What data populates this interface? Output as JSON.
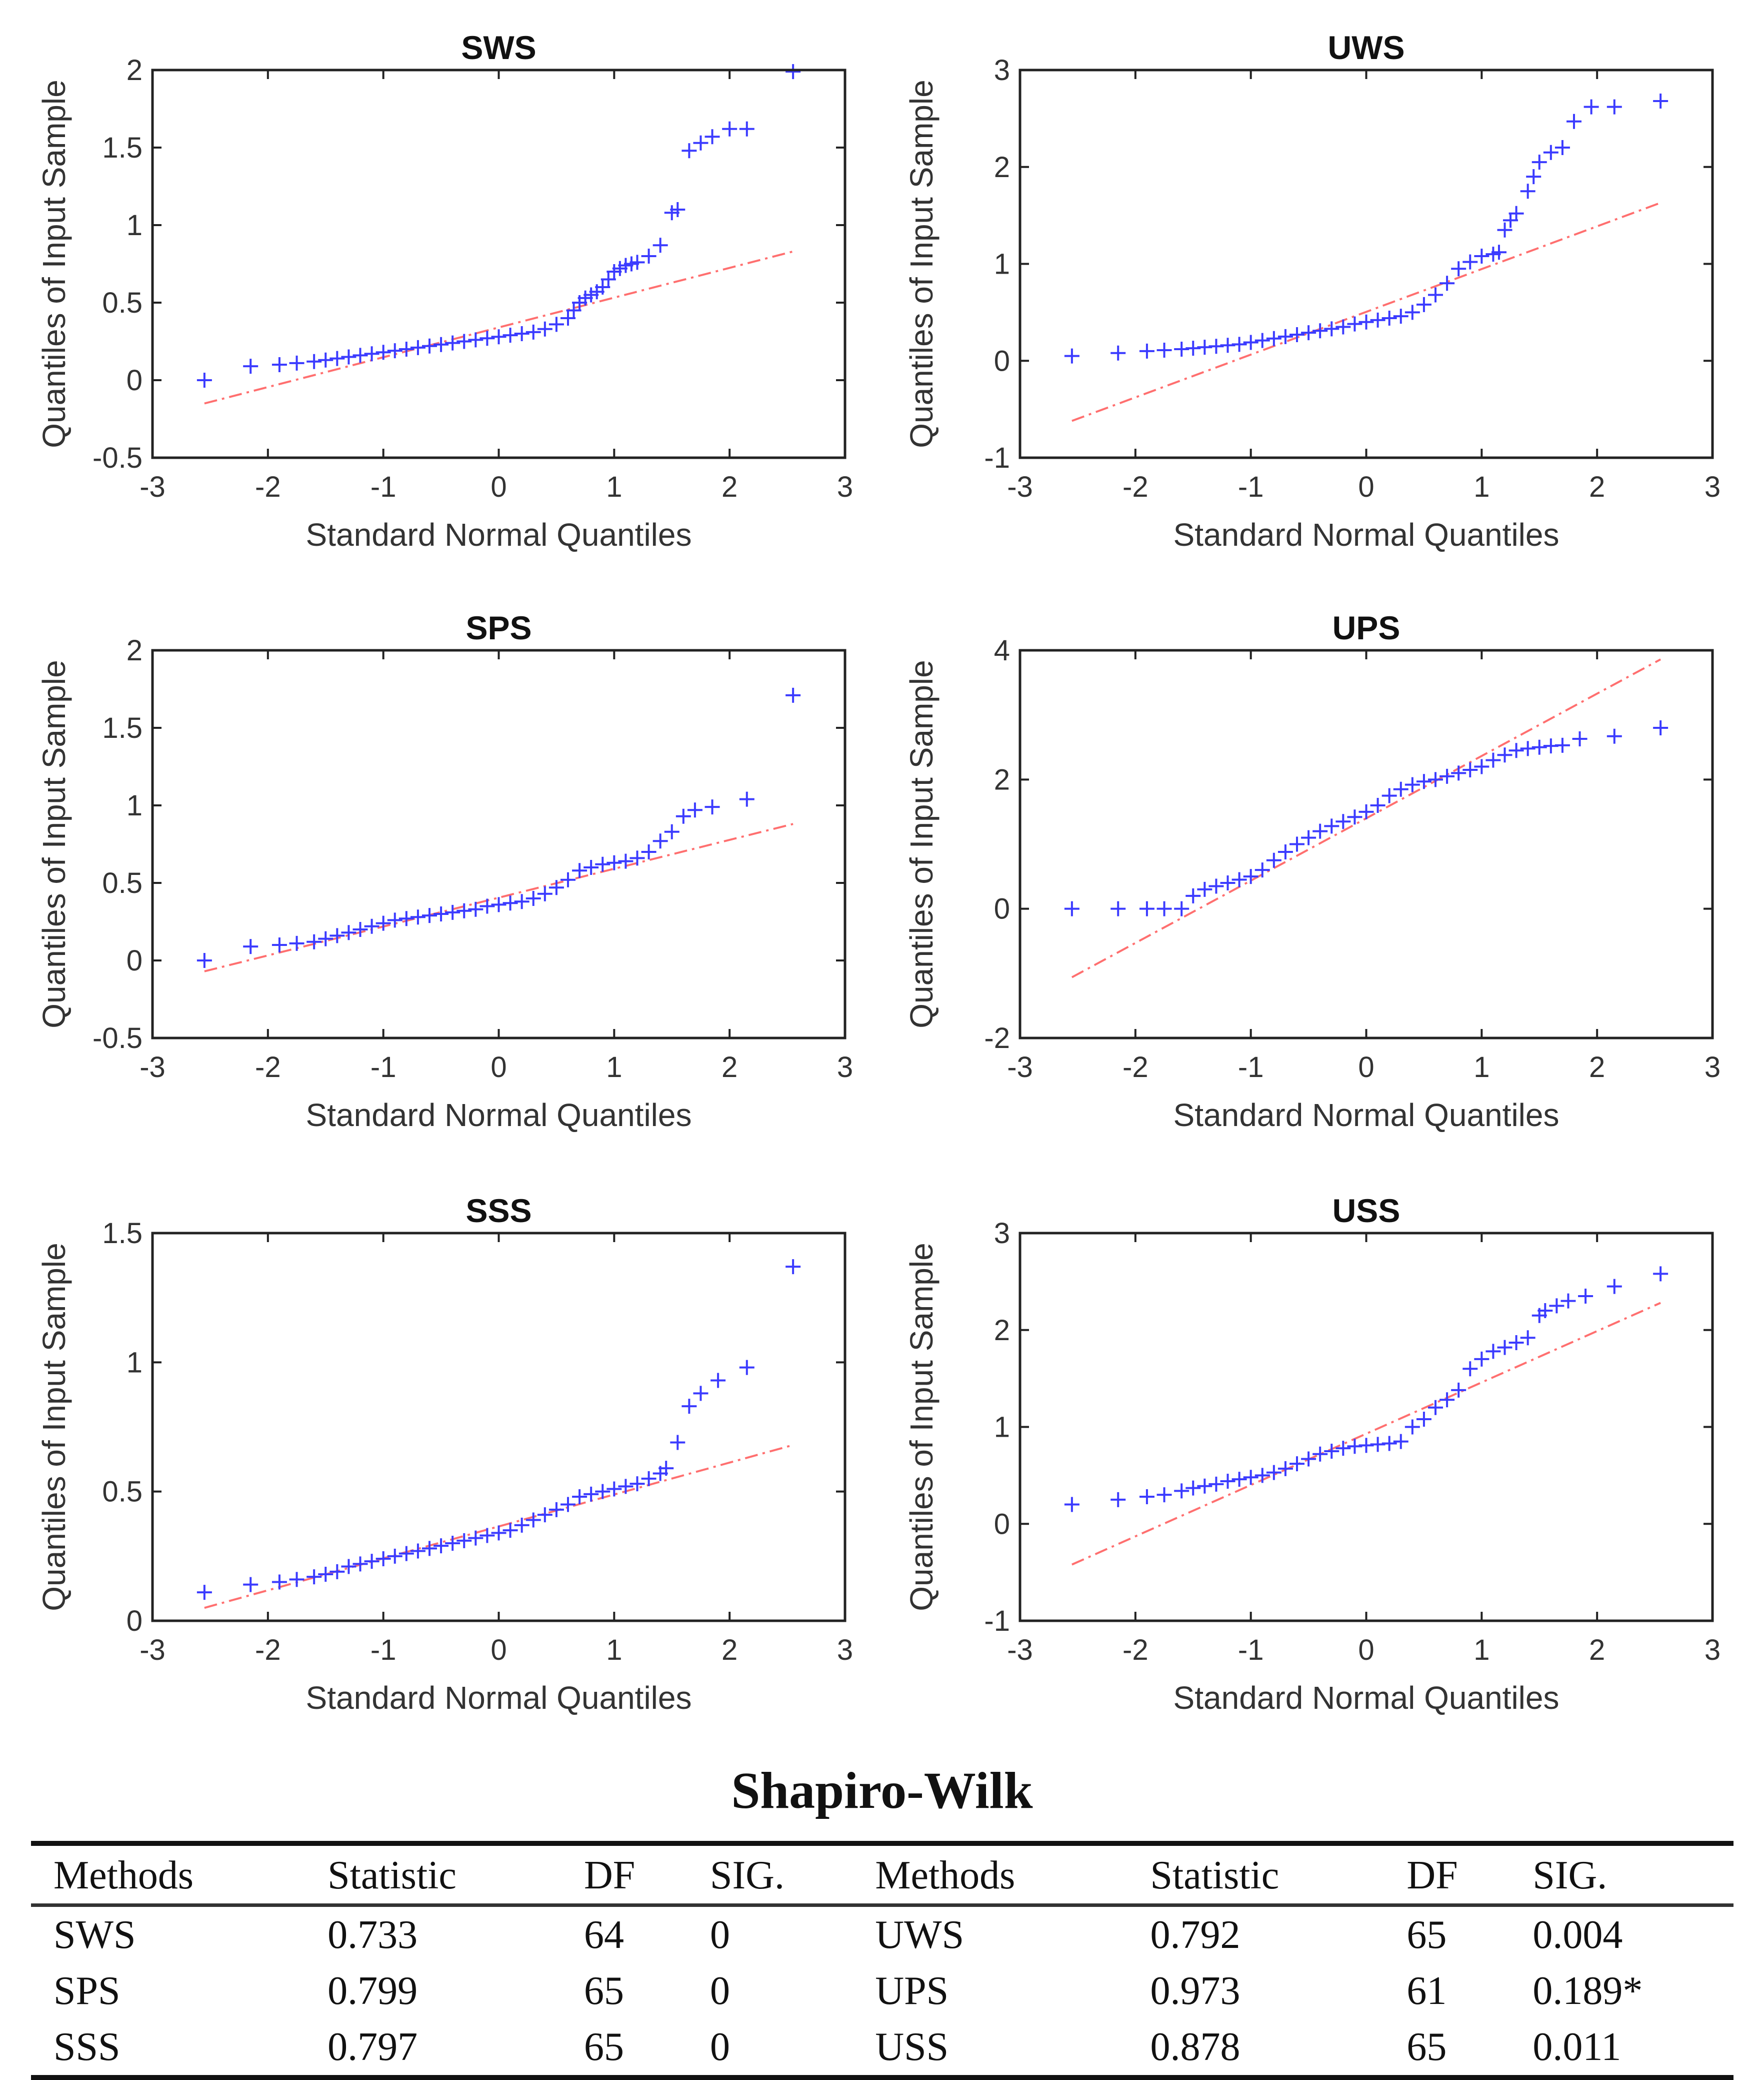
{
  "chart_data": [
    {
      "type": "scatter",
      "title": "SWS",
      "xlabel": "Standard Normal Quantiles",
      "ylabel": "Quantiles of Input Sample",
      "xlim": [
        -3,
        3
      ],
      "ylim": [
        -0.5,
        2
      ],
      "xticks": [
        -3,
        -2,
        -1,
        0,
        1,
        2,
        3
      ],
      "yticks": [
        -0.5,
        0,
        0.5,
        1,
        1.5,
        2
      ],
      "refline": {
        "from": [
          -2.55,
          -0.15
        ],
        "to": [
          2.55,
          0.83
        ]
      },
      "x": [
        -2.55,
        -2.15,
        -1.9,
        -1.75,
        -1.6,
        -1.5,
        -1.4,
        -1.3,
        -1.2,
        -1.1,
        -1.0,
        -0.9,
        -0.8,
        -0.7,
        -0.6,
        -0.5,
        -0.4,
        -0.3,
        -0.2,
        -0.1,
        0.0,
        0.1,
        0.2,
        0.3,
        0.4,
        0.5,
        0.6,
        0.65,
        0.7,
        0.75,
        0.8,
        0.85,
        0.9,
        0.95,
        1.0,
        1.05,
        1.1,
        1.15,
        1.2,
        1.3,
        1.4,
        1.5,
        1.55,
        1.65,
        1.75,
        1.85,
        2.0,
        2.15,
        2.55
      ],
      "y": [
        0.0,
        0.09,
        0.1,
        0.11,
        0.12,
        0.13,
        0.14,
        0.15,
        0.16,
        0.17,
        0.18,
        0.19,
        0.2,
        0.21,
        0.22,
        0.23,
        0.24,
        0.25,
        0.26,
        0.27,
        0.28,
        0.29,
        0.3,
        0.31,
        0.33,
        0.36,
        0.4,
        0.45,
        0.5,
        0.53,
        0.55,
        0.57,
        0.6,
        0.65,
        0.7,
        0.72,
        0.74,
        0.75,
        0.76,
        0.8,
        0.87,
        1.08,
        1.1,
        1.48,
        1.53,
        1.57,
        1.62,
        1.62,
        1.99
      ]
    },
    {
      "type": "scatter",
      "title": "UWS",
      "xlabel": "Standard Normal Quantiles",
      "ylabel": "Quantiles of Input Sample",
      "xlim": [
        -3,
        3
      ],
      "ylim": [
        -1,
        3
      ],
      "xticks": [
        -3,
        -2,
        -1,
        0,
        1,
        2,
        3
      ],
      "yticks": [
        -1,
        0,
        1,
        2,
        3
      ],
      "refline": {
        "from": [
          -2.55,
          -0.62
        ],
        "to": [
          2.55,
          1.63
        ]
      },
      "x": [
        -2.55,
        -2.15,
        -1.9,
        -1.75,
        -1.6,
        -1.5,
        -1.4,
        -1.3,
        -1.2,
        -1.1,
        -1.0,
        -0.9,
        -0.8,
        -0.7,
        -0.6,
        -0.5,
        -0.4,
        -0.3,
        -0.2,
        -0.1,
        0.0,
        0.1,
        0.2,
        0.3,
        0.4,
        0.5,
        0.6,
        0.7,
        0.8,
        0.9,
        1.0,
        1.1,
        1.15,
        1.2,
        1.25,
        1.3,
        1.4,
        1.45,
        1.5,
        1.6,
        1.7,
        1.8,
        1.95,
        2.15,
        2.55
      ],
      "y": [
        0.05,
        0.08,
        0.1,
        0.11,
        0.12,
        0.13,
        0.14,
        0.15,
        0.16,
        0.17,
        0.19,
        0.21,
        0.23,
        0.25,
        0.27,
        0.29,
        0.31,
        0.33,
        0.35,
        0.38,
        0.4,
        0.42,
        0.44,
        0.46,
        0.5,
        0.58,
        0.68,
        0.8,
        0.95,
        1.02,
        1.08,
        1.1,
        1.12,
        1.35,
        1.45,
        1.52,
        1.75,
        1.9,
        2.05,
        2.15,
        2.2,
        2.47,
        2.62,
        2.62,
        2.68
      ]
    },
    {
      "type": "scatter",
      "title": "SPS",
      "xlabel": "Standard Normal Quantiles",
      "ylabel": "Quantiles of Input Sample",
      "xlim": [
        -3,
        3
      ],
      "ylim": [
        -0.5,
        2
      ],
      "xticks": [
        -3,
        -2,
        -1,
        0,
        1,
        2,
        3
      ],
      "yticks": [
        -0.5,
        0,
        0.5,
        1,
        1.5,
        2
      ],
      "refline": {
        "from": [
          -2.55,
          -0.07
        ],
        "to": [
          2.55,
          0.88
        ]
      },
      "x": [
        -2.55,
        -2.15,
        -1.9,
        -1.75,
        -1.6,
        -1.5,
        -1.4,
        -1.3,
        -1.2,
        -1.1,
        -1.0,
        -0.9,
        -0.8,
        -0.7,
        -0.6,
        -0.5,
        -0.4,
        -0.3,
        -0.2,
        -0.1,
        0.0,
        0.1,
        0.2,
        0.3,
        0.4,
        0.5,
        0.6,
        0.7,
        0.8,
        0.9,
        1.0,
        1.1,
        1.2,
        1.3,
        1.4,
        1.5,
        1.6,
        1.7,
        1.85,
        2.15,
        2.55
      ],
      "y": [
        0.0,
        0.09,
        0.1,
        0.11,
        0.12,
        0.14,
        0.16,
        0.18,
        0.2,
        0.22,
        0.24,
        0.26,
        0.27,
        0.28,
        0.29,
        0.3,
        0.31,
        0.32,
        0.33,
        0.35,
        0.36,
        0.37,
        0.38,
        0.4,
        0.43,
        0.47,
        0.52,
        0.58,
        0.6,
        0.62,
        0.63,
        0.64,
        0.66,
        0.7,
        0.77,
        0.83,
        0.93,
        0.97,
        0.99,
        1.04,
        1.71
      ]
    },
    {
      "type": "scatter",
      "title": "UPS",
      "xlabel": "Standard Normal Quantiles",
      "ylabel": "Quantiles of Input Sample",
      "xlim": [
        -3,
        3
      ],
      "ylim": [
        -2,
        4
      ],
      "xticks": [
        -3,
        -2,
        -1,
        0,
        1,
        2,
        3
      ],
      "yticks": [
        -2,
        0,
        2,
        4
      ],
      "refline": {
        "from": [
          -2.55,
          -1.06
        ],
        "to": [
          2.55,
          3.86
        ]
      },
      "x": [
        -2.55,
        -2.15,
        -1.9,
        -1.75,
        -1.6,
        -1.5,
        -1.4,
        -1.3,
        -1.2,
        -1.1,
        -1.0,
        -0.9,
        -0.8,
        -0.7,
        -0.6,
        -0.5,
        -0.4,
        -0.3,
        -0.2,
        -0.1,
        0.0,
        0.1,
        0.2,
        0.3,
        0.4,
        0.5,
        0.6,
        0.7,
        0.8,
        0.9,
        1.0,
        1.1,
        1.2,
        1.3,
        1.4,
        1.5,
        1.6,
        1.7,
        1.85,
        2.15,
        2.55
      ],
      "y": [
        0.0,
        0.0,
        0.0,
        0.0,
        0.0,
        0.2,
        0.3,
        0.35,
        0.4,
        0.45,
        0.5,
        0.6,
        0.75,
        0.88,
        1.0,
        1.1,
        1.2,
        1.28,
        1.35,
        1.42,
        1.5,
        1.6,
        1.75,
        1.85,
        1.92,
        1.97,
        2.0,
        2.05,
        2.1,
        2.15,
        2.2,
        2.3,
        2.38,
        2.45,
        2.48,
        2.5,
        2.52,
        2.53,
        2.63,
        2.67,
        2.8
      ]
    },
    {
      "type": "scatter",
      "title": "SSS",
      "xlabel": "Standard Normal Quantiles",
      "ylabel": "Quantiles of Input Sample",
      "xlim": [
        -3,
        3
      ],
      "ylim": [
        0,
        1.5
      ],
      "xticks": [
        -3,
        -2,
        -1,
        0,
        1,
        2,
        3
      ],
      "yticks": [
        0,
        0.5,
        1,
        1.5
      ],
      "refline": {
        "from": [
          -2.55,
          0.05
        ],
        "to": [
          2.55,
          0.68
        ]
      },
      "x": [
        -2.55,
        -2.15,
        -1.9,
        -1.75,
        -1.6,
        -1.5,
        -1.4,
        -1.3,
        -1.2,
        -1.1,
        -1.0,
        -0.9,
        -0.8,
        -0.7,
        -0.6,
        -0.5,
        -0.4,
        -0.3,
        -0.2,
        -0.1,
        0.0,
        0.1,
        0.2,
        0.3,
        0.4,
        0.5,
        0.6,
        0.7,
        0.8,
        0.9,
        1.0,
        1.1,
        1.2,
        1.3,
        1.4,
        1.45,
        1.55,
        1.65,
        1.75,
        1.9,
        2.15,
        2.55
      ],
      "y": [
        0.11,
        0.14,
        0.15,
        0.16,
        0.17,
        0.18,
        0.19,
        0.21,
        0.22,
        0.23,
        0.24,
        0.25,
        0.26,
        0.27,
        0.28,
        0.29,
        0.3,
        0.31,
        0.32,
        0.33,
        0.34,
        0.35,
        0.37,
        0.39,
        0.41,
        0.43,
        0.45,
        0.48,
        0.49,
        0.5,
        0.51,
        0.52,
        0.53,
        0.55,
        0.57,
        0.59,
        0.69,
        0.83,
        0.88,
        0.93,
        0.98,
        1.37
      ]
    },
    {
      "type": "scatter",
      "title": "USS",
      "xlabel": "Standard Normal Quantiles",
      "ylabel": "Quantiles of Input Sample",
      "xlim": [
        -3,
        3
      ],
      "ylim": [
        -1,
        3
      ],
      "xticks": [
        -3,
        -2,
        -1,
        0,
        1,
        2,
        3
      ],
      "yticks": [
        -1,
        0,
        1,
        2,
        3
      ],
      "refline": {
        "from": [
          -2.55,
          -0.42
        ],
        "to": [
          2.55,
          2.28
        ]
      },
      "x": [
        -2.55,
        -2.15,
        -1.9,
        -1.75,
        -1.6,
        -1.5,
        -1.4,
        -1.3,
        -1.2,
        -1.1,
        -1.0,
        -0.9,
        -0.8,
        -0.7,
        -0.6,
        -0.5,
        -0.4,
        -0.3,
        -0.2,
        -0.1,
        0.0,
        0.1,
        0.2,
        0.3,
        0.4,
        0.5,
        0.6,
        0.7,
        0.8,
        0.9,
        1.0,
        1.1,
        1.2,
        1.3,
        1.4,
        1.5,
        1.55,
        1.65,
        1.75,
        1.9,
        2.15,
        2.55
      ],
      "y": [
        0.2,
        0.25,
        0.28,
        0.3,
        0.34,
        0.37,
        0.39,
        0.41,
        0.44,
        0.46,
        0.48,
        0.5,
        0.53,
        0.57,
        0.62,
        0.67,
        0.72,
        0.75,
        0.78,
        0.8,
        0.81,
        0.82,
        0.83,
        0.85,
        1.0,
        1.08,
        1.2,
        1.28,
        1.38,
        1.6,
        1.7,
        1.78,
        1.82,
        1.87,
        1.92,
        2.15,
        2.2,
        2.25,
        2.3,
        2.35,
        2.45,
        2.58
      ]
    }
  ],
  "table": {
    "title": "Shapiro-Wilk",
    "headers": [
      "Methods",
      "Statistic",
      "DF",
      "SIG.",
      "Methods",
      "Statistic",
      "DF",
      "SIG."
    ],
    "rows": [
      [
        "SWS",
        "0.733",
        "64",
        "0",
        "UWS",
        "0.792",
        "65",
        "0.004"
      ],
      [
        "SPS",
        "0.799",
        "65",
        "0",
        "UPS",
        "0.973",
        "61",
        "0.189*"
      ],
      [
        "SSS",
        "0.797",
        "65",
        "0",
        "USS",
        "0.878",
        "65",
        "0.011"
      ]
    ]
  },
  "colors": {
    "points": "#3b3bff",
    "refline": "#ff6f6f",
    "axis": "#222222"
  }
}
